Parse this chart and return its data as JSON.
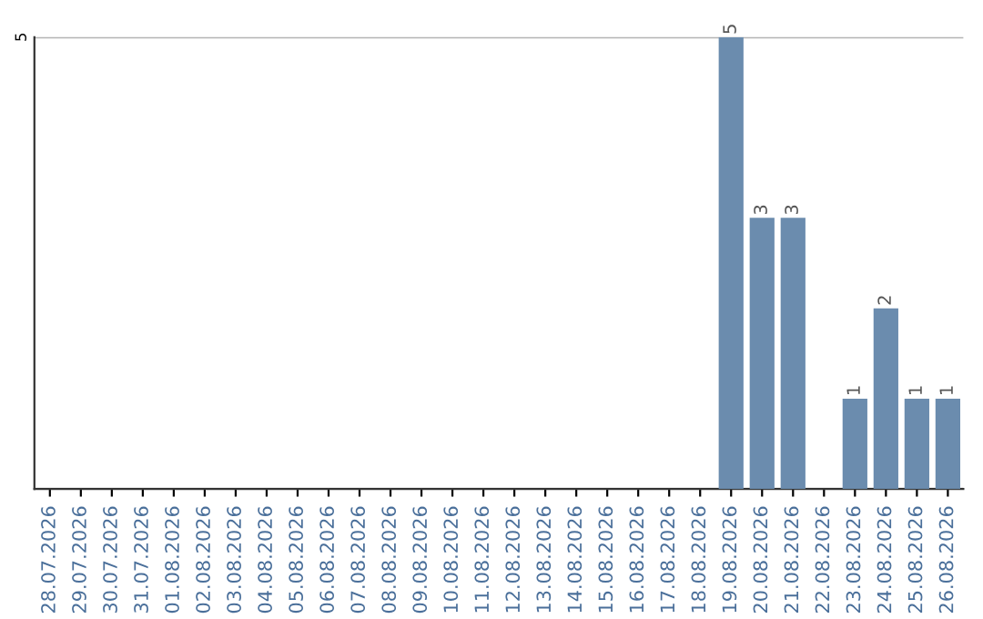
{
  "chart_data": {
    "type": "bar",
    "categories": [
      "28.07.2026",
      "29.07.2026",
      "30.07.2026",
      "31.07.2026",
      "01.08.2026",
      "02.08.2026",
      "03.08.2026",
      "04.08.2026",
      "05.08.2026",
      "06.08.2026",
      "07.08.2026",
      "08.08.2026",
      "09.08.2026",
      "10.08.2026",
      "11.08.2026",
      "12.08.2026",
      "13.08.2026",
      "14.08.2026",
      "15.08.2026",
      "16.08.2026",
      "17.08.2026",
      "18.08.2026",
      "19.08.2026",
      "20.08.2026",
      "21.08.2026",
      "22.08.2026",
      "23.08.2026",
      "24.08.2026",
      "25.08.2026",
      "26.08.2026"
    ],
    "values": [
      null,
      null,
      null,
      null,
      null,
      null,
      null,
      null,
      null,
      null,
      null,
      null,
      null,
      null,
      null,
      null,
      null,
      null,
      null,
      null,
      null,
      null,
      5,
      3,
      3,
      null,
      1,
      2,
      1,
      1
    ],
    "value_labels": [
      null,
      null,
      null,
      null,
      null,
      null,
      null,
      null,
      null,
      null,
      null,
      null,
      null,
      null,
      null,
      null,
      null,
      null,
      null,
      null,
      null,
      null,
      "5",
      "3",
      "3",
      null,
      "1",
      "2",
      "1",
      "1"
    ],
    "color": "#6b8cae",
    "ylim": [
      0,
      5
    ],
    "yticks": [
      {
        "value": 0,
        "label": null
      },
      5
    ],
    "grid": "y"
  }
}
